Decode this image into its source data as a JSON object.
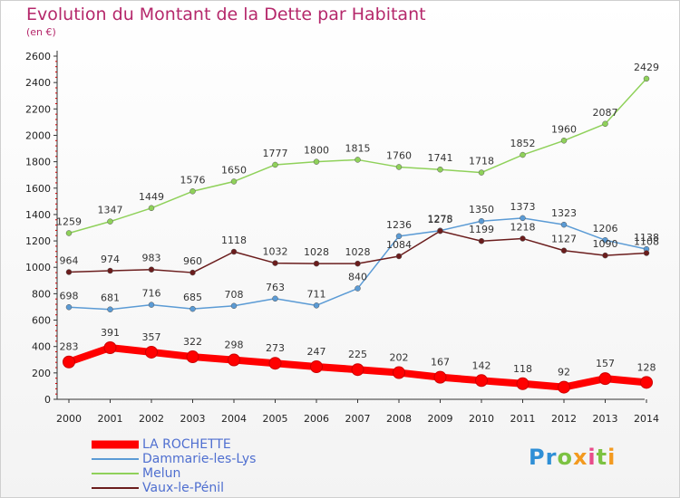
{
  "header": {
    "title": "Evolution du Montant de la Dette par Habitant",
    "unit": "(en €)"
  },
  "logo": {
    "text": "Proxiti",
    "colors": [
      "#2f8fd6",
      "#f39a1f",
      "#7cc242",
      "#e84b8a"
    ]
  },
  "chart_data": {
    "type": "line",
    "title": "Evolution du Montant de la Dette par Habitant",
    "subtitle": "(en €)",
    "xlabel": "",
    "ylabel": "",
    "x": [
      "2000",
      "2001",
      "2002",
      "2003",
      "2004",
      "2005",
      "2006",
      "2007",
      "2008",
      "2009",
      "2010",
      "2011",
      "2012",
      "2013",
      "2014"
    ],
    "ylim": [
      0,
      2600
    ],
    "yticks": [
      0,
      200,
      400,
      600,
      800,
      1000,
      1200,
      1400,
      1600,
      1800,
      2000,
      2200,
      2400,
      2600
    ],
    "grid": false,
    "legend_position": "bottom-left",
    "series": [
      {
        "name": "LA ROCHETTE",
        "color": "#ff0000",
        "emphasis": true,
        "values": [
          283,
          391,
          357,
          322,
          298,
          273,
          247,
          225,
          202,
          167,
          142,
          118,
          92,
          157,
          128
        ]
      },
      {
        "name": "Dammarie-les-Lys",
        "color": "#5b9bd5",
        "values": [
          698,
          681,
          716,
          685,
          708,
          763,
          711,
          840,
          1236,
          1278,
          1350,
          1373,
          1323,
          1206,
          1138
        ]
      },
      {
        "name": "Melun",
        "color": "#8fd15a",
        "values": [
          1259,
          1347,
          1449,
          1576,
          1650,
          1777,
          1800,
          1815,
          1760,
          1741,
          1718,
          1852,
          1960,
          2087,
          2429
        ]
      },
      {
        "name": "Vaux-le-Pénil",
        "color": "#6b1d1d",
        "values": [
          964,
          974,
          983,
          960,
          1118,
          1032,
          1028,
          1028,
          1084,
          1275,
          1199,
          1218,
          1127,
          1090,
          1108
        ]
      }
    ]
  }
}
